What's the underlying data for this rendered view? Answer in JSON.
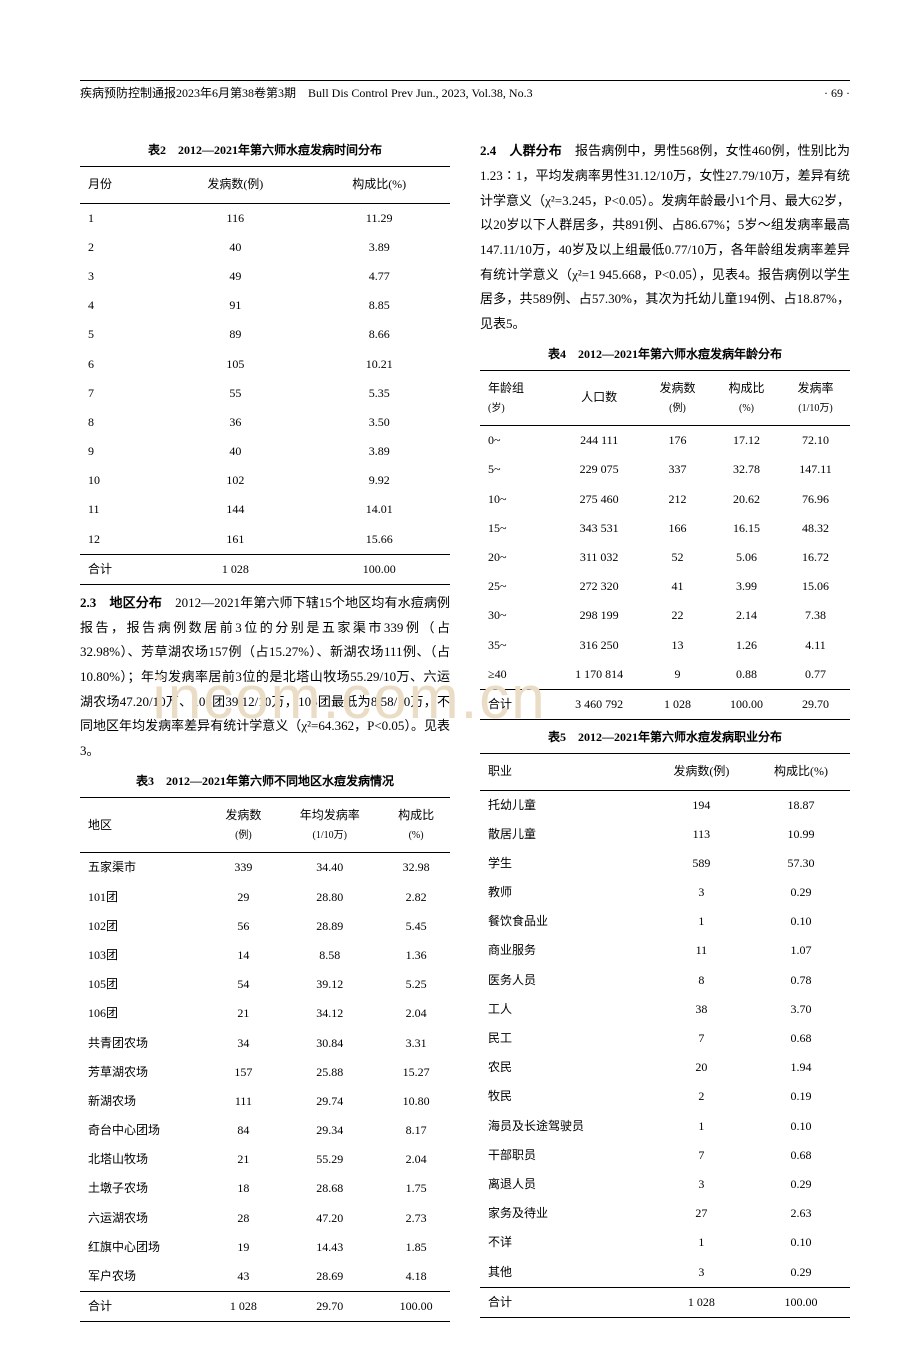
{
  "header": {
    "left": "疾病预防控制通报2023年6月第38卷第3期　Bull Dis Control Prev Jun., 2023, Vol.38, No.3",
    "right": "· 69 ·"
  },
  "watermark": "incom.com.cn",
  "table2": {
    "caption": "表2　2012—2021年第六师水痘发病时间分布",
    "columns": [
      "月份",
      "发病数(例)",
      "构成比(%)"
    ],
    "rows": [
      [
        "1",
        "116",
        "11.29"
      ],
      [
        "2",
        "40",
        "3.89"
      ],
      [
        "3",
        "49",
        "4.77"
      ],
      [
        "4",
        "91",
        "8.85"
      ],
      [
        "5",
        "89",
        "8.66"
      ],
      [
        "6",
        "105",
        "10.21"
      ],
      [
        "7",
        "55",
        "5.35"
      ],
      [
        "8",
        "36",
        "3.50"
      ],
      [
        "9",
        "40",
        "3.89"
      ],
      [
        "10",
        "102",
        "9.92"
      ],
      [
        "11",
        "144",
        "14.01"
      ],
      [
        "12",
        "161",
        "15.66"
      ]
    ],
    "total": [
      "合计",
      "1 028",
      "100.00"
    ]
  },
  "section23": {
    "label": "2.3　地区分布",
    "text": "　2012—2021年第六师下辖15个地区均有水痘病例报告，报告病例数居前3位的分别是五家渠市339例（占32.98%）、芳草湖农场157例（占15.27%）、新湖农场111例、（占10.80%）；年均发病率居前3位的是北塔山牧场55.29/10万、六运湖农场47.20/10万、105团39.12/10万，103团最低为8.58/10万，不同地区年均发病率差异有统计学意义（χ²=64.362，P<0.05）。见表3。"
  },
  "table3": {
    "caption": "表3　2012—2021年第六师不同地区水痘发病情况",
    "columns": [
      "地区",
      "发病数\n(例)",
      "年均发病率\n(1/10万)",
      "构成比\n(%)"
    ],
    "rows": [
      [
        "五家渠市",
        "339",
        "34.40",
        "32.98"
      ],
      [
        "101团",
        "29",
        "28.80",
        "2.82"
      ],
      [
        "102团",
        "56",
        "28.89",
        "5.45"
      ],
      [
        "103团",
        "14",
        "8.58",
        "1.36"
      ],
      [
        "105团",
        "54",
        "39.12",
        "5.25"
      ],
      [
        "106团",
        "21",
        "34.12",
        "2.04"
      ],
      [
        "共青团农场",
        "34",
        "30.84",
        "3.31"
      ],
      [
        "芳草湖农场",
        "157",
        "25.88",
        "15.27"
      ],
      [
        "新湖农场",
        "111",
        "29.74",
        "10.80"
      ],
      [
        "奇台中心团场",
        "84",
        "29.34",
        "8.17"
      ],
      [
        "北塔山牧场",
        "21",
        "55.29",
        "2.04"
      ],
      [
        "土墩子农场",
        "18",
        "28.68",
        "1.75"
      ],
      [
        "六运湖农场",
        "28",
        "47.20",
        "2.73"
      ],
      [
        "红旗中心团场",
        "19",
        "14.43",
        "1.85"
      ],
      [
        "军户农场",
        "43",
        "28.69",
        "4.18"
      ]
    ],
    "total": [
      "合计",
      "1 028",
      "29.70",
      "100.00"
    ]
  },
  "section24": {
    "label": "2.4　人群分布",
    "text": "　报告病例中，男性568例，女性460例，性别比为1.23∶1，平均发病率男性31.12/10万，女性27.79/10万，差异有统计学意义（χ²=3.245，P<0.05）。发病年龄最小1个月、最大62岁，以20岁以下人群居多，共891例、占86.67%；5岁～组发病率最高147.11/10万，40岁及以上组最低0.77/10万，各年龄组发病率差异有统计学意义（χ²=1 945.668，P<0.05），见表4。报告病例以学生居多，共589例、占57.30%，其次为托幼儿童194例、占18.87%，见表5。"
  },
  "table4": {
    "caption": "表4　2012—2021年第六师水痘发病年龄分布",
    "columns": [
      "年龄组\n(岁)",
      "人口数",
      "发病数\n(例)",
      "构成比\n(%)",
      "发病率\n(1/10万)"
    ],
    "rows": [
      [
        "0~",
        "244 111",
        "176",
        "17.12",
        "72.10"
      ],
      [
        "5~",
        "229 075",
        "337",
        "32.78",
        "147.11"
      ],
      [
        "10~",
        "275 460",
        "212",
        "20.62",
        "76.96"
      ],
      [
        "15~",
        "343 531",
        "166",
        "16.15",
        "48.32"
      ],
      [
        "20~",
        "311 032",
        "52",
        "5.06",
        "16.72"
      ],
      [
        "25~",
        "272 320",
        "41",
        "3.99",
        "15.06"
      ],
      [
        "30~",
        "298 199",
        "22",
        "2.14",
        "7.38"
      ],
      [
        "35~",
        "316 250",
        "13",
        "1.26",
        "4.11"
      ],
      [
        "≥40",
        "1 170 814",
        "9",
        "0.88",
        "0.77"
      ]
    ],
    "total": [
      "合计",
      "3 460 792",
      "1 028",
      "100.00",
      "29.70"
    ]
  },
  "table5": {
    "caption": "表5　2012—2021年第六师水痘发病职业分布",
    "columns": [
      "职业",
      "发病数(例)",
      "构成比(%)"
    ],
    "rows": [
      [
        "托幼儿童",
        "194",
        "18.87"
      ],
      [
        "散居儿童",
        "113",
        "10.99"
      ],
      [
        "学生",
        "589",
        "57.30"
      ],
      [
        "教师",
        "3",
        "0.29"
      ],
      [
        "餐饮食品业",
        "1",
        "0.10"
      ],
      [
        "商业服务",
        "11",
        "1.07"
      ],
      [
        "医务人员",
        "8",
        "0.78"
      ],
      [
        "工人",
        "38",
        "3.70"
      ],
      [
        "民工",
        "7",
        "0.68"
      ],
      [
        "农民",
        "20",
        "1.94"
      ],
      [
        "牧民",
        "2",
        "0.19"
      ],
      [
        "海员及长途驾驶员",
        "1",
        "0.10"
      ],
      [
        "干部职员",
        "7",
        "0.68"
      ],
      [
        "离退人员",
        "3",
        "0.29"
      ],
      [
        "家务及待业",
        "27",
        "2.63"
      ],
      [
        "不详",
        "1",
        "0.10"
      ],
      [
        "其他",
        "3",
        "0.29"
      ]
    ],
    "total": [
      "合计",
      "1 028",
      "100.00"
    ]
  }
}
